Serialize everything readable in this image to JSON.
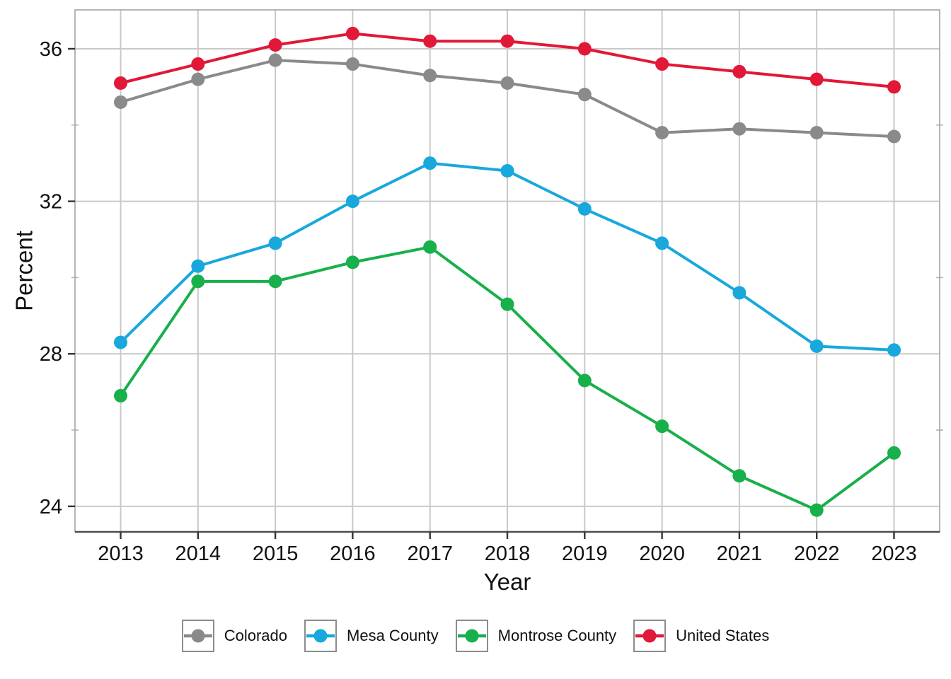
{
  "figure": {
    "background": "#ffffff",
    "text_color": "#111111",
    "grid_color": "#c9c9c9",
    "panel_border_color": "#a3a3a3",
    "axis_line_color": "#4d4d4d",
    "tick_color": "#333333"
  },
  "chart_data": {
    "type": "line",
    "title": "",
    "xlabel": "Year",
    "ylabel": "Percent",
    "x": [
      2013,
      2014,
      2015,
      2016,
      2017,
      2018,
      2019,
      2020,
      2021,
      2022,
      2023
    ],
    "x_tick_labels": [
      "2013",
      "2014",
      "2015",
      "2016",
      "2017",
      "2018",
      "2019",
      "2020",
      "2021",
      "2022",
      "2023"
    ],
    "y_ticks": [
      24,
      28,
      32,
      36
    ],
    "y_minor_ticks": [
      26,
      30,
      34
    ],
    "xlim": [
      2012.41,
      2023.59
    ],
    "ylim": [
      23.33,
      37.02
    ],
    "grid": true,
    "legend_position": "bottom",
    "marker": "circle",
    "series": [
      {
        "name": "Colorado",
        "color": "#8a8a8a",
        "values": [
          34.6,
          35.2,
          35.7,
          35.6,
          35.3,
          35.1,
          34.8,
          33.8,
          33.9,
          33.8,
          33.7
        ]
      },
      {
        "name": "Mesa County",
        "color": "#18a8dc",
        "values": [
          28.3,
          30.3,
          30.9,
          32.0,
          33.0,
          32.8,
          31.8,
          30.9,
          29.6,
          28.2,
          28.1
        ]
      },
      {
        "name": "Montrose County",
        "color": "#17b04a",
        "values": [
          26.9,
          29.9,
          29.9,
          30.4,
          30.8,
          29.3,
          27.3,
          26.1,
          24.8,
          23.9,
          25.4
        ]
      },
      {
        "name": "United States",
        "color": "#e11837",
        "values": [
          35.1,
          35.6,
          36.1,
          36.4,
          36.2,
          36.2,
          36.0,
          35.6,
          35.4,
          35.2,
          35.0
        ]
      }
    ]
  }
}
